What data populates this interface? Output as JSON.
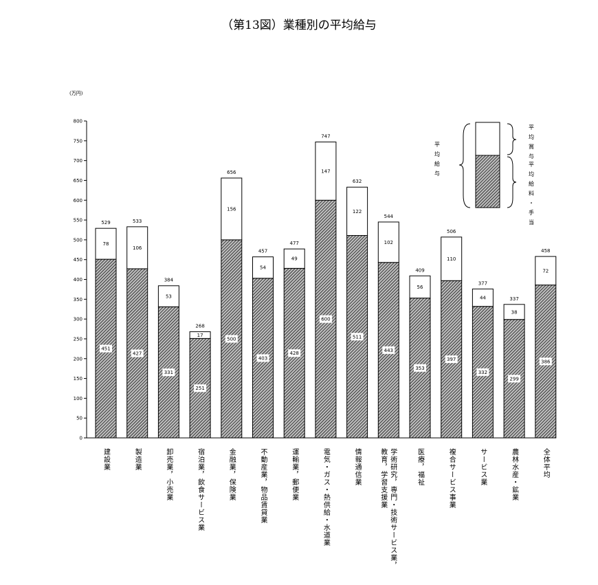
{
  "chart_data": {
    "type": "bar",
    "stacked": true,
    "title": "（第13図）業種別の平均給与",
    "unit_label": "(万円)",
    "ylim": [
      0,
      800
    ],
    "y_ticks": [
      0,
      50,
      100,
      150,
      200,
      250,
      300,
      350,
      400,
      450,
      500,
      550,
      600,
      650,
      700,
      750,
      800
    ],
    "categories": [
      "建設業",
      "製造業",
      "卸売業，小売業",
      "宿泊業，飲食サービス業",
      "金融業，保険業",
      "不動産業，物品賃貸業",
      "運輸業，郵便業",
      "電気・ガス・熱供給・水道業",
      "情報通信業",
      "学術研究，専門・技術サービス業，教育，学習支援業",
      "医療，福祉",
      "複合サービス事業",
      "サービス業",
      "農林水産・鉱業",
      "全体平均"
    ],
    "category_lines": [
      [
        "建設業"
      ],
      [
        "製造業"
      ],
      [
        "卸売業，小売業"
      ],
      [
        "宿泊業，飲食サービス業"
      ],
      [
        "金融業，保険業"
      ],
      [
        "不動産業，物品賃貸業"
      ],
      [
        "運輸業，郵便業"
      ],
      [
        "電気・ガス・熱供給・水道業"
      ],
      [
        "情報通信業"
      ],
      [
        "学術研究，専門・技術サービス業，",
        "教育，学習支援業"
      ],
      [
        "医療，福祉"
      ],
      [
        "複合サービス事業"
      ],
      [
        "サービス業"
      ],
      [
        "農林水産・鉱業"
      ],
      [
        "全体平均"
      ]
    ],
    "series": [
      {
        "name": "平均給料・手当",
        "values": [
          451,
          427,
          331,
          251,
          500,
          403,
          428,
          600,
          511,
          443,
          353,
          397,
          332,
          299,
          386
        ]
      },
      {
        "name": "平均賞与",
        "values": [
          78,
          106,
          53,
          17,
          156,
          54,
          49,
          147,
          122,
          102,
          56,
          110,
          44,
          38,
          72
        ]
      }
    ],
    "totals": [
      529,
      533,
      384,
      268,
      656,
      457,
      477,
      747,
      632,
      544,
      409,
      506,
      377,
      337,
      458
    ],
    "legend": {
      "placement": "top-right",
      "total_label": "平均給与",
      "upper_label": "平均賞与",
      "lower_label": "平均給料・手当"
    },
    "colors": {
      "bonus_fill": "#ffffff",
      "salary_hatch": "#3a3a3a",
      "axis": "#000000"
    }
  }
}
